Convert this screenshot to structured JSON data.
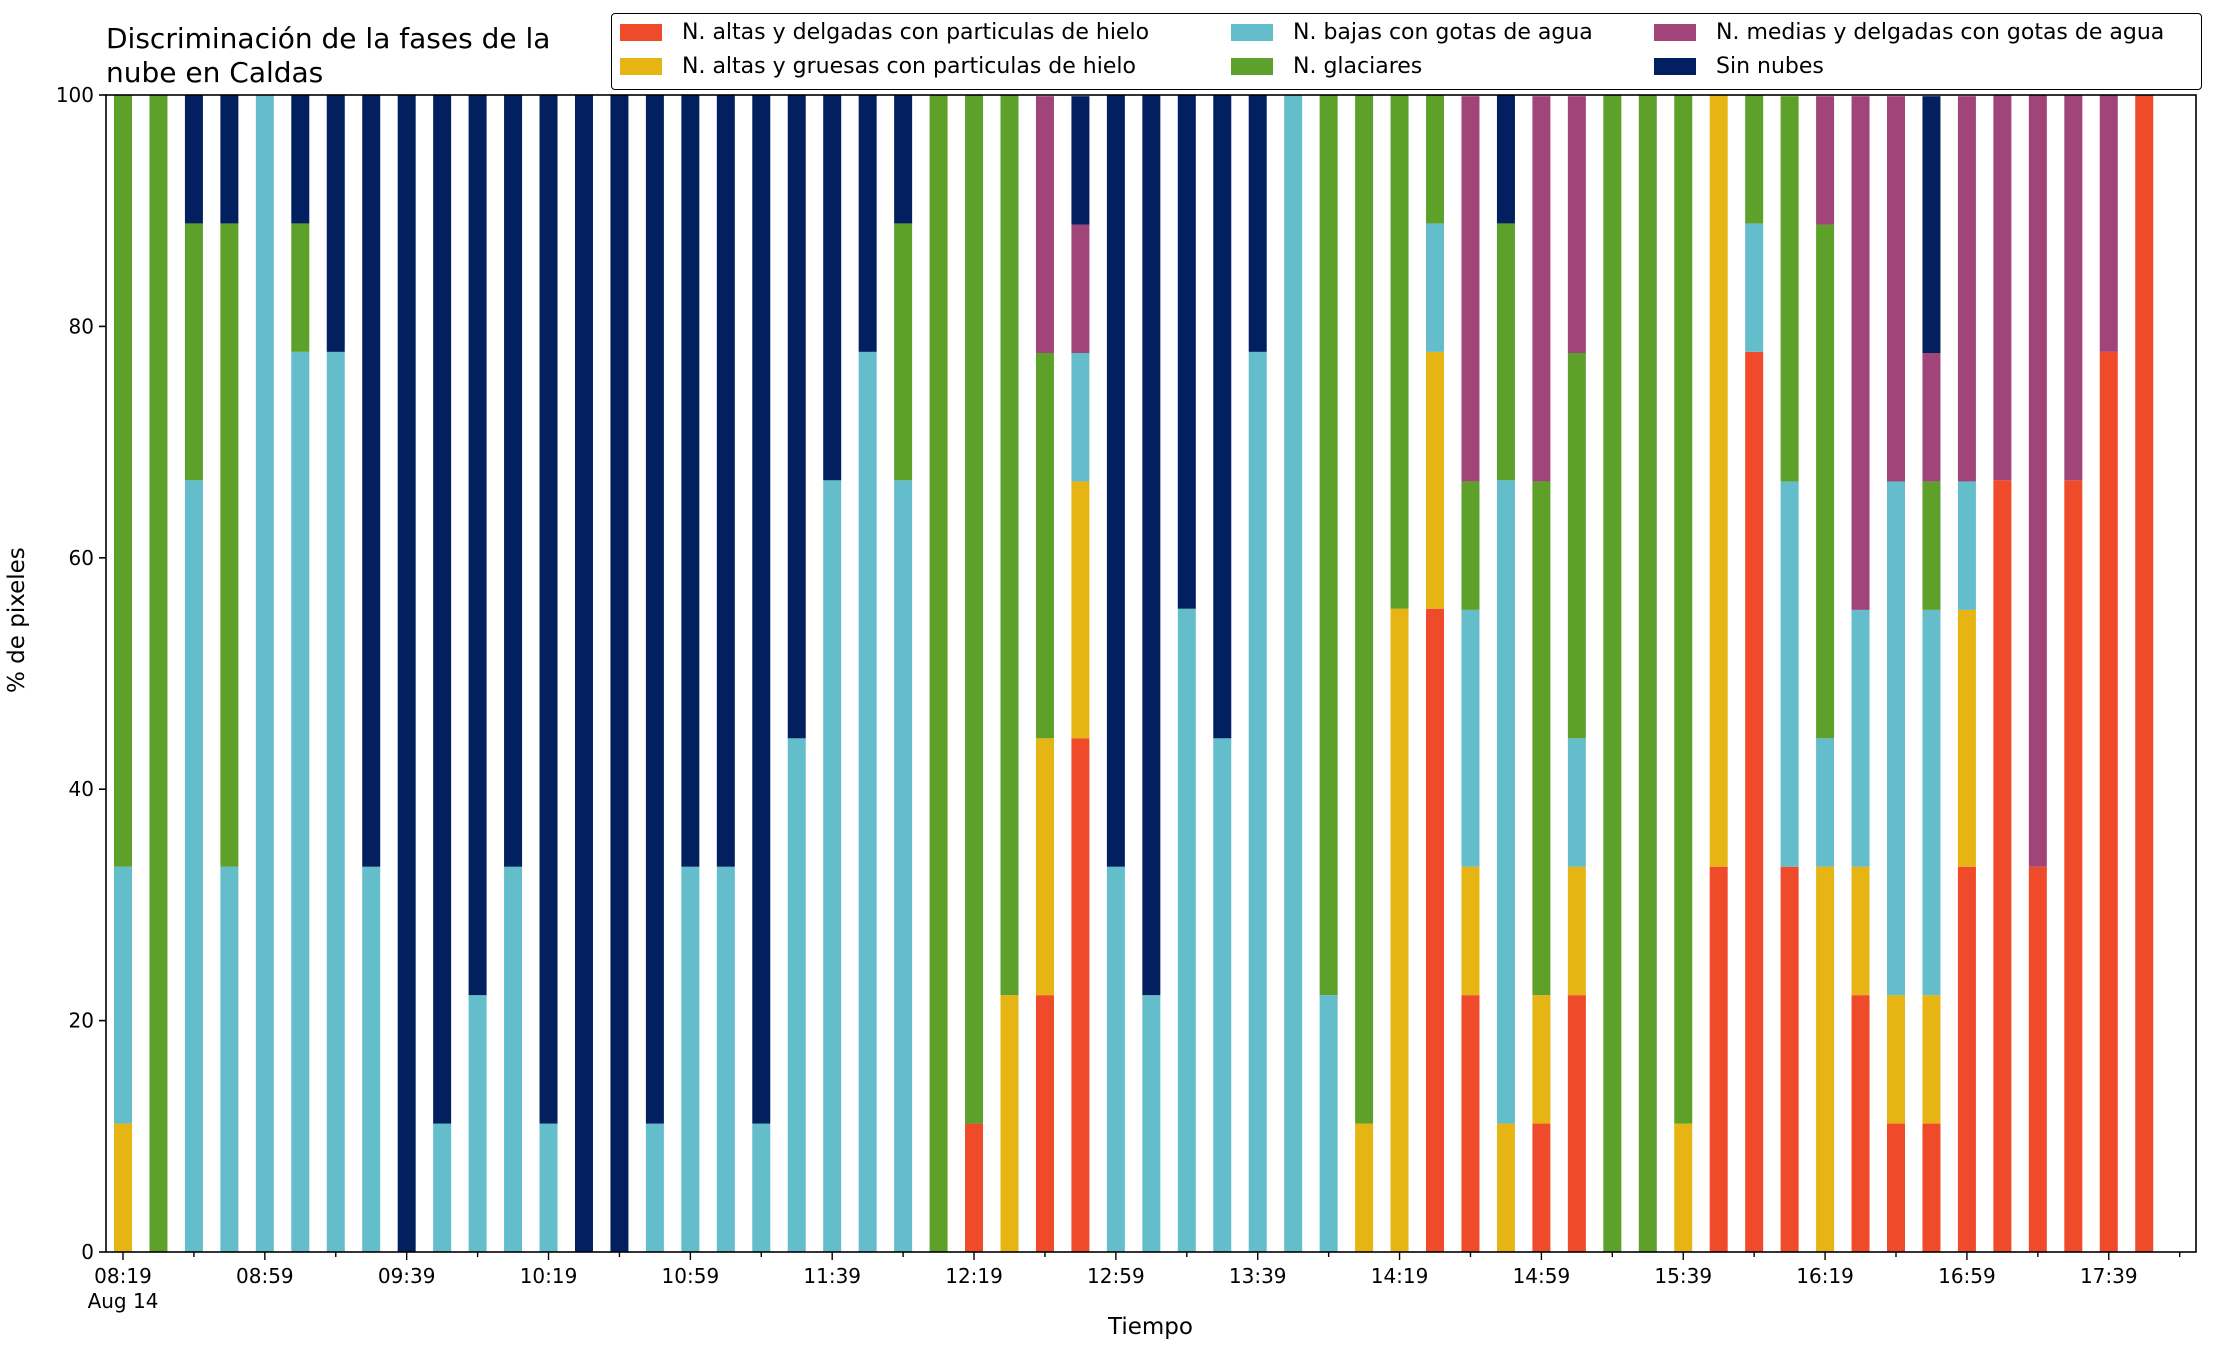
{
  "chart_data": {
    "type": "bar",
    "stacked": true,
    "title_lines": [
      "Discriminación de la fases de la",
      "nube en Caldas"
    ],
    "xlabel": "Tiempo",
    "ylabel": "% de pixeles",
    "ylim": [
      0,
      100
    ],
    "yticks": [
      "0",
      "20",
      "40",
      "60",
      "80",
      "100"
    ],
    "xtick_labels": [
      "08:19",
      "08:59",
      "09:39",
      "10:19",
      "10:59",
      "11:39",
      "12:19",
      "12:59",
      "13:39",
      "14:19",
      "14:59",
      "15:39",
      "16:19",
      "16:59",
      "17:39"
    ],
    "xtick_sublabel": "Aug 14",
    "legend_position": "top-right",
    "series_order": [
      "alta_delgada",
      "alta_gruesa",
      "baja_agua",
      "glaciar",
      "media_agua",
      "sin_nubes"
    ],
    "series": [
      {
        "key": "alta_delgada",
        "name": "N. altas y delgadas con particulas de hielo",
        "color": "#ef4a2a"
      },
      {
        "key": "alta_gruesa",
        "name": "N. altas y gruesas con particulas de hielo",
        "color": "#e6b514"
      },
      {
        "key": "baja_agua",
        "name": "N. bajas con gotas de agua",
        "color": "#64bdca"
      },
      {
        "key": "glaciar",
        "name": "N. glaciares",
        "color": "#5da12b"
      },
      {
        "key": "media_agua",
        "name": "N. medias y delgadas con gotas de agua",
        "color": "#a1447a"
      },
      {
        "key": "sin_nubes",
        "name": "Sin nubes",
        "color": "#02205f"
      }
    ],
    "bars": [
      [
        0,
        11.1,
        22.2,
        66.7,
        0,
        0
      ],
      [
        0,
        0,
        0,
        100,
        0,
        0
      ],
      [
        0,
        0,
        66.7,
        22.2,
        0,
        11.1
      ],
      [
        0,
        0,
        33.3,
        55.6,
        0,
        11.1
      ],
      [
        0,
        0,
        100,
        0,
        0,
        0
      ],
      [
        0,
        0,
        77.8,
        11.1,
        0,
        11.1
      ],
      [
        0,
        0,
        77.8,
        0,
        0,
        22.2
      ],
      [
        0,
        0,
        33.3,
        0,
        0,
        66.7
      ],
      [
        0,
        0,
        0,
        0,
        0,
        100
      ],
      [
        0,
        0,
        11.1,
        0,
        0,
        88.9
      ],
      [
        0,
        0,
        22.2,
        0,
        0,
        77.8
      ],
      [
        0,
        0,
        33.3,
        0,
        0,
        66.7
      ],
      [
        0,
        0,
        11.1,
        0,
        0,
        88.9
      ],
      [
        0,
        0,
        0,
        0,
        0,
        100
      ],
      [
        0,
        0,
        0,
        0,
        0,
        100
      ],
      [
        0,
        0,
        11.1,
        0,
        0,
        88.9
      ],
      [
        0,
        0,
        33.3,
        0,
        0,
        66.7
      ],
      [
        0,
        0,
        33.3,
        0,
        0,
        66.7
      ],
      [
        0,
        0,
        11.1,
        0,
        0,
        88.9
      ],
      [
        0,
        0,
        44.4,
        0,
        0,
        55.6
      ],
      [
        0,
        0,
        66.7,
        0,
        0,
        33.3
      ],
      [
        0,
        0,
        77.8,
        0,
        0,
        22.2
      ],
      [
        0,
        0,
        66.7,
        22.2,
        0,
        11.1
      ],
      [
        0,
        0,
        0,
        100,
        0,
        0
      ],
      [
        11.1,
        0,
        0,
        88.9,
        0,
        0
      ],
      [
        0,
        22.2,
        0,
        77.8,
        0,
        0
      ],
      [
        22.2,
        22.2,
        0,
        33.3,
        22.2,
        0
      ],
      [
        44.4,
        22.2,
        11.1,
        0,
        11.1,
        11.1
      ],
      [
        0,
        0,
        33.3,
        0,
        0,
        66.7
      ],
      [
        0,
        0,
        22.2,
        0,
        0,
        77.8
      ],
      [
        0,
        0,
        55.6,
        0,
        0,
        44.4
      ],
      [
        0,
        0,
        44.4,
        0,
        0,
        55.6
      ],
      [
        0,
        0,
        77.8,
        0,
        0,
        22.2
      ],
      [
        0,
        0,
        100,
        0,
        0,
        0
      ],
      [
        0,
        0,
        22.2,
        77.8,
        0,
        0
      ],
      [
        0,
        11.1,
        0,
        88.9,
        0,
        0
      ],
      [
        0,
        55.6,
        0,
        44.4,
        0,
        0
      ],
      [
        55.6,
        22.2,
        11.1,
        11.1,
        0,
        0
      ],
      [
        22.2,
        11.1,
        22.2,
        11.1,
        33.3,
        0
      ],
      [
        0,
        11.1,
        55.6,
        22.2,
        0,
        11.1
      ],
      [
        11.1,
        11.1,
        0,
        44.4,
        33.3,
        0
      ],
      [
        22.2,
        11.1,
        11.1,
        33.3,
        22.2,
        0
      ],
      [
        0,
        0,
        0,
        100,
        0,
        0
      ],
      [
        0,
        0,
        0,
        100,
        0,
        0
      ],
      [
        0,
        11.1,
        0,
        88.9,
        0,
        0
      ],
      [
        33.3,
        66.7,
        0,
        0,
        0,
        0
      ],
      [
        77.8,
        0,
        11.1,
        11.1,
        0,
        0
      ],
      [
        33.3,
        0,
        33.3,
        33.3,
        0,
        0
      ],
      [
        0,
        33.3,
        11.1,
        44.4,
        11.1,
        0
      ],
      [
        22.2,
        11.1,
        22.2,
        0,
        44.4,
        0
      ],
      [
        11.1,
        11.1,
        44.4,
        0,
        33.3,
        0
      ],
      [
        11.1,
        11.1,
        33.3,
        11.1,
        11.1,
        22.2
      ],
      [
        33.3,
        22.2,
        11.1,
        0,
        33.3,
        0
      ],
      [
        66.7,
        0,
        0,
        0,
        33.3,
        0
      ],
      [
        33.3,
        0,
        0,
        0,
        66.7,
        0
      ],
      [
        66.7,
        0,
        0,
        0,
        33.3,
        0
      ],
      [
        77.8,
        0,
        0,
        0,
        22.2,
        0
      ],
      [
        100,
        0,
        0,
        0,
        0,
        0
      ]
    ]
  }
}
